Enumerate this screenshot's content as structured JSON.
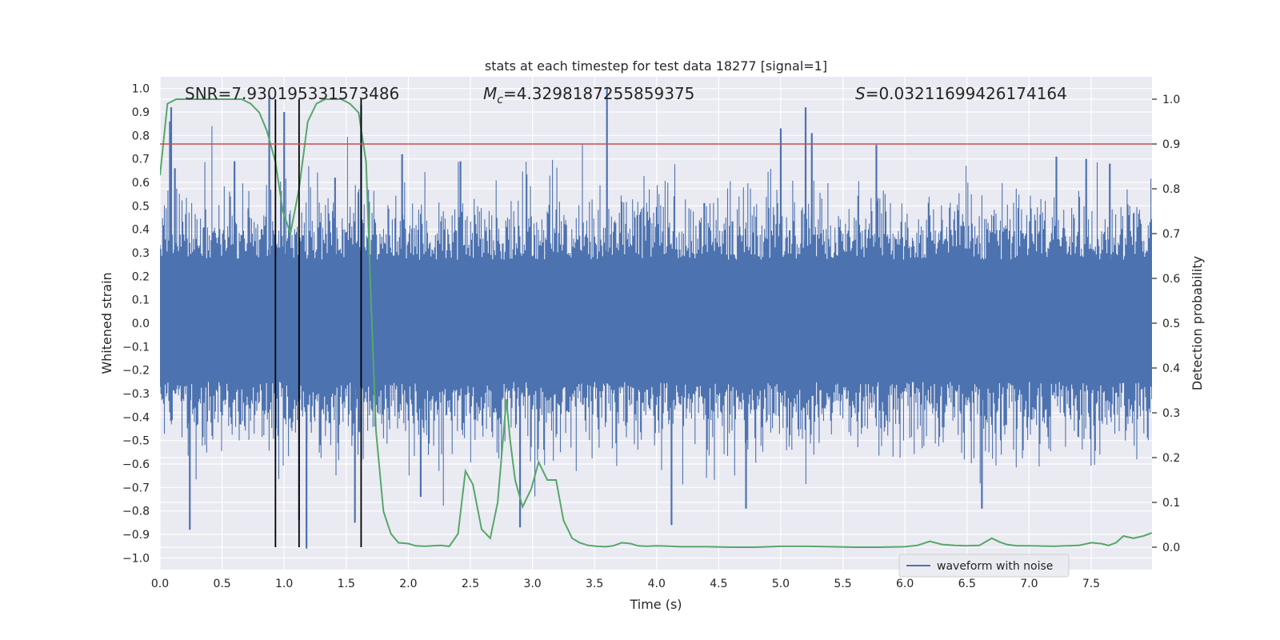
{
  "chart_data": {
    "type": "line",
    "title": "stats at each timestep for test data 18277 [signal=1]",
    "xlabel": "Time (s)",
    "ylabel": "Whitened strain",
    "y2label": "Detection probability",
    "xlim": [
      0.0,
      7.99
    ],
    "ylim": [
      -1.05,
      1.05
    ],
    "y2lim": [
      -0.05,
      1.05
    ],
    "xticks": [
      0.0,
      0.5,
      1.0,
      1.5,
      2.0,
      2.5,
      3.0,
      3.5,
      4.0,
      4.5,
      5.0,
      5.5,
      6.0,
      6.5,
      7.0,
      7.5
    ],
    "xtick_labels": [
      "0.0",
      "0.5",
      "1.0",
      "1.5",
      "2.0",
      "2.5",
      "3.0",
      "3.5",
      "4.0",
      "4.5",
      "5.0",
      "5.5",
      "6.0",
      "6.5",
      "7.0",
      "7.5"
    ],
    "yticks": [
      -1.0,
      -0.9,
      -0.8,
      -0.7,
      -0.6,
      -0.5,
      -0.4,
      -0.3,
      -0.2,
      -0.1,
      0.0,
      0.1,
      0.2,
      0.3,
      0.4,
      0.5,
      0.6,
      0.7,
      0.8,
      0.9,
      1.0
    ],
    "ytick_labels": [
      "−1.0",
      "−0.9",
      "−0.8",
      "−0.7",
      "−0.6",
      "−0.5",
      "−0.4",
      "−0.3",
      "−0.2",
      "−0.1",
      "0.0",
      "0.1",
      "0.2",
      "0.3",
      "0.4",
      "0.5",
      "0.6",
      "0.7",
      "0.8",
      "0.9",
      "1.0"
    ],
    "y2ticks": [
      0.0,
      0.1,
      0.2,
      0.3,
      0.4,
      0.5,
      0.6,
      0.7,
      0.8,
      0.9,
      1.0
    ],
    "y2tick_labels": [
      "0.0",
      "0.1",
      "0.2",
      "0.3",
      "0.4",
      "0.5",
      "0.6",
      "0.7",
      "0.8",
      "0.9",
      "1.0"
    ],
    "grid": true,
    "legend_position": "lower-right",
    "annotations": {
      "snr": "SNR=7.930195331573486",
      "mc_symbol": "M",
      "mc_sub": "c",
      "mc_value": "=4.3298187255859375",
      "s_symbol": "S",
      "s_value": "=0.03211699426174164"
    },
    "threshold": {
      "y2": 0.9,
      "color": "#c44e52"
    },
    "vlines": [
      0.93,
      1.12,
      1.62
    ],
    "series": [
      {
        "name": "waveform with noise",
        "axis": "left",
        "color": "#4c72b0",
        "style": "dense-noise",
        "band_upper": 0.27,
        "band_lower": -0.25,
        "noise_sigma": 0.11,
        "spikes": [
          {
            "x": 0.08,
            "y": 0.86
          },
          {
            "x": 0.09,
            "y": 0.92
          },
          {
            "x": 0.12,
            "y": 0.66
          },
          {
            "x": 0.24,
            "y": -0.88
          },
          {
            "x": 0.6,
            "y": 0.69
          },
          {
            "x": 0.88,
            "y": 0.97
          },
          {
            "x": 1.0,
            "y": 0.9
          },
          {
            "x": 1.12,
            "y": -0.84
          },
          {
            "x": 1.18,
            "y": -0.96
          },
          {
            "x": 1.41,
            "y": 0.62
          },
          {
            "x": 1.57,
            "y": -0.85
          },
          {
            "x": 1.62,
            "y": 0.93
          },
          {
            "x": 1.95,
            "y": 0.72
          },
          {
            "x": 2.1,
            "y": -0.74
          },
          {
            "x": 2.42,
            "y": 0.69
          },
          {
            "x": 2.9,
            "y": -0.87
          },
          {
            "x": 3.6,
            "y": 1.0
          },
          {
            "x": 4.12,
            "y": -0.86
          },
          {
            "x": 4.72,
            "y": -0.79
          },
          {
            "x": 5.0,
            "y": 0.83
          },
          {
            "x": 5.2,
            "y": 0.92
          },
          {
            "x": 5.25,
            "y": 0.81
          },
          {
            "x": 5.77,
            "y": 0.76
          },
          {
            "x": 6.62,
            "y": -0.79
          },
          {
            "x": 7.22,
            "y": 0.71
          },
          {
            "x": 7.46,
            "y": 0.7
          },
          {
            "x": 7.65,
            "y": 0.68
          }
        ]
      },
      {
        "name": "detection probability",
        "axis": "right",
        "color": "#55a868",
        "x": [
          0.0,
          0.06,
          0.13,
          0.2,
          0.3,
          0.4,
          0.5,
          0.6,
          0.66,
          0.73,
          0.8,
          0.86,
          0.93,
          0.99,
          1.05,
          1.12,
          1.19,
          1.26,
          1.33,
          1.4,
          1.46,
          1.53,
          1.6,
          1.66,
          1.7,
          1.74,
          1.8,
          1.86,
          1.92,
          2.0,
          2.06,
          2.13,
          2.2,
          2.26,
          2.33,
          2.4,
          2.46,
          2.52,
          2.59,
          2.66,
          2.72,
          2.79,
          2.82,
          2.86,
          2.92,
          2.99,
          3.05,
          3.12,
          3.19,
          3.25,
          3.32,
          3.38,
          3.45,
          3.52,
          3.59,
          3.65,
          3.72,
          3.79,
          3.85,
          3.92,
          4.0,
          4.2,
          4.4,
          4.6,
          4.8,
          5.0,
          5.2,
          5.4,
          5.6,
          5.8,
          6.0,
          6.1,
          6.2,
          6.3,
          6.4,
          6.5,
          6.6,
          6.7,
          6.76,
          6.82,
          6.9,
          7.0,
          7.2,
          7.3,
          7.4,
          7.5,
          7.58,
          7.64,
          7.7,
          7.76,
          7.84,
          7.92,
          7.99
        ],
        "y": [
          0.83,
          0.99,
          1.0,
          1.0,
          1.0,
          1.0,
          1.0,
          1.0,
          1.0,
          0.99,
          0.97,
          0.93,
          0.86,
          0.75,
          0.7,
          0.8,
          0.95,
          0.99,
          1.0,
          1.0,
          1.0,
          0.99,
          0.97,
          0.86,
          0.55,
          0.26,
          0.08,
          0.03,
          0.01,
          0.008,
          0.003,
          0.002,
          0.003,
          0.004,
          0.002,
          0.03,
          0.17,
          0.14,
          0.04,
          0.02,
          0.1,
          0.33,
          0.24,
          0.15,
          0.09,
          0.13,
          0.19,
          0.15,
          0.15,
          0.06,
          0.02,
          0.01,
          0.004,
          0.002,
          0.001,
          0.003,
          0.01,
          0.008,
          0.003,
          0.002,
          0.003,
          0.001,
          0.001,
          0.0,
          0.0,
          0.002,
          0.002,
          0.001,
          0.0,
          0.0,
          0.001,
          0.004,
          0.013,
          0.006,
          0.004,
          0.003,
          0.004,
          0.02,
          0.012,
          0.006,
          0.003,
          0.003,
          0.002,
          0.003,
          0.004,
          0.01,
          0.008,
          0.004,
          0.01,
          0.025,
          0.02,
          0.025,
          0.032
        ]
      }
    ],
    "legend": [
      {
        "label": "waveform with noise",
        "color": "#4c72b0"
      }
    ]
  }
}
